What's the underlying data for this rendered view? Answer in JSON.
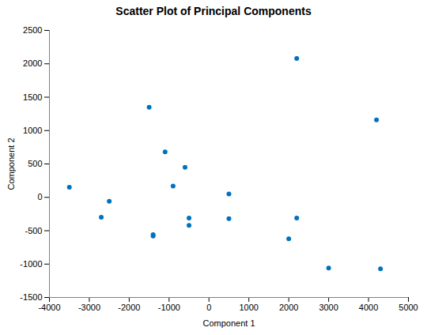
{
  "chart_data": {
    "type": "scatter",
    "title": "Scatter Plot of Principal Components",
    "xlabel": "Component 1",
    "ylabel": "Component 2",
    "x": [
      -3500,
      -2700,
      -2500,
      -1500,
      -1400,
      -1400,
      -1100,
      -900,
      -600,
      -500,
      -500,
      500,
      500,
      2000,
      2200,
      2200,
      3000,
      4200,
      4300
    ],
    "y": [
      150,
      -300,
      -60,
      1350,
      -580,
      -560,
      680,
      170,
      450,
      -420,
      -310,
      50,
      -320,
      -620,
      2080,
      -310,
      -1060,
      1160,
      -1070
    ],
    "color": "#0072BD",
    "marker": "circle",
    "xlim": [
      -4000,
      5000
    ],
    "ylim": [
      -1500,
      2500
    ],
    "xticks": [
      -4000,
      -3000,
      -2000,
      -1000,
      0,
      1000,
      2000,
      3000,
      4000,
      5000
    ],
    "yticks": [
      -1500,
      -1000,
      -500,
      0,
      500,
      1000,
      1500,
      2000,
      2500
    ],
    "grid": false
  }
}
